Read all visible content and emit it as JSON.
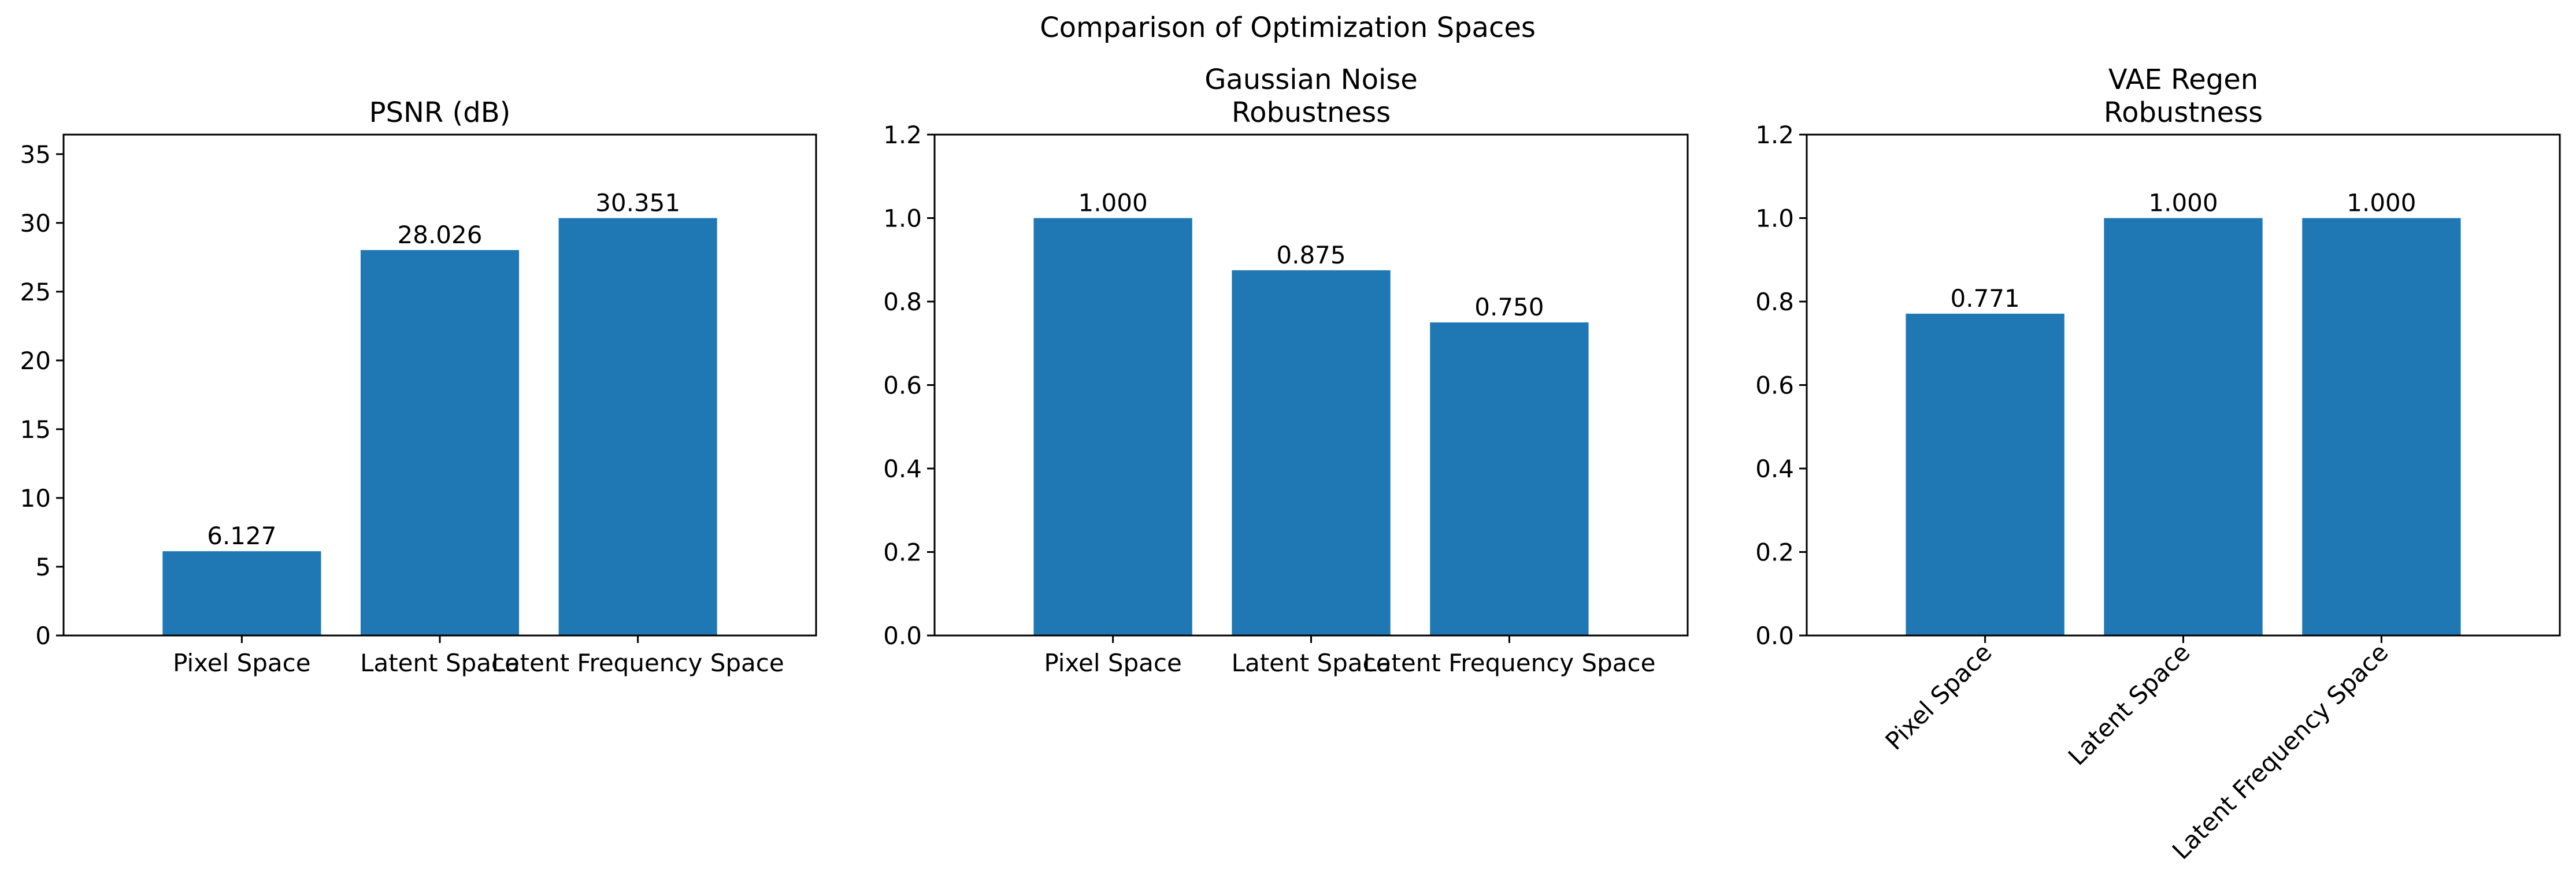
{
  "figure": {
    "title": "Comparison of Optimization Spaces"
  },
  "chart_data": [
    {
      "type": "bar",
      "title_lines": [
        "PSNR (dB)"
      ],
      "categories": [
        "Pixel Space",
        "Latent Space",
        "Latent Frequency Space"
      ],
      "values": [
        6.127,
        28.026,
        30.351
      ],
      "value_labels": [
        "6.127",
        "28.026",
        "30.351"
      ],
      "ylim": [
        0,
        36.42
      ],
      "yticks": [
        0,
        5,
        10,
        15,
        20,
        25,
        30,
        35
      ],
      "ytick_decimals": 0,
      "xtick_rotation": 0,
      "bar_color": "#1f77b4",
      "grid": false,
      "legend": "none"
    },
    {
      "type": "bar",
      "title_lines": [
        "Gaussian Noise",
        "Robustness"
      ],
      "categories": [
        "Pixel Space",
        "Latent Space",
        "Latent Frequency Space"
      ],
      "values": [
        1.0,
        0.875,
        0.75
      ],
      "value_labels": [
        "1.000",
        "0.875",
        "0.750"
      ],
      "ylim": [
        0,
        1.2
      ],
      "yticks": [
        0.0,
        0.2,
        0.4,
        0.6,
        0.8,
        1.0,
        1.2
      ],
      "ytick_decimals": 1,
      "xtick_rotation": 0,
      "bar_color": "#1f77b4",
      "grid": false,
      "legend": "none"
    },
    {
      "type": "bar",
      "title_lines": [
        "VAE Regen",
        "Robustness"
      ],
      "categories": [
        "Pixel Space",
        "Latent Space",
        "Latent Frequency Space"
      ],
      "values": [
        0.771,
        1.0,
        1.0
      ],
      "value_labels": [
        "0.771",
        "1.000",
        "1.000"
      ],
      "ylim": [
        0,
        1.2
      ],
      "yticks": [
        0.0,
        0.2,
        0.4,
        0.6,
        0.8,
        1.0,
        1.2
      ],
      "ytick_decimals": 1,
      "xtick_rotation": 45,
      "bar_color": "#1f77b4",
      "grid": false,
      "legend": "none"
    }
  ]
}
